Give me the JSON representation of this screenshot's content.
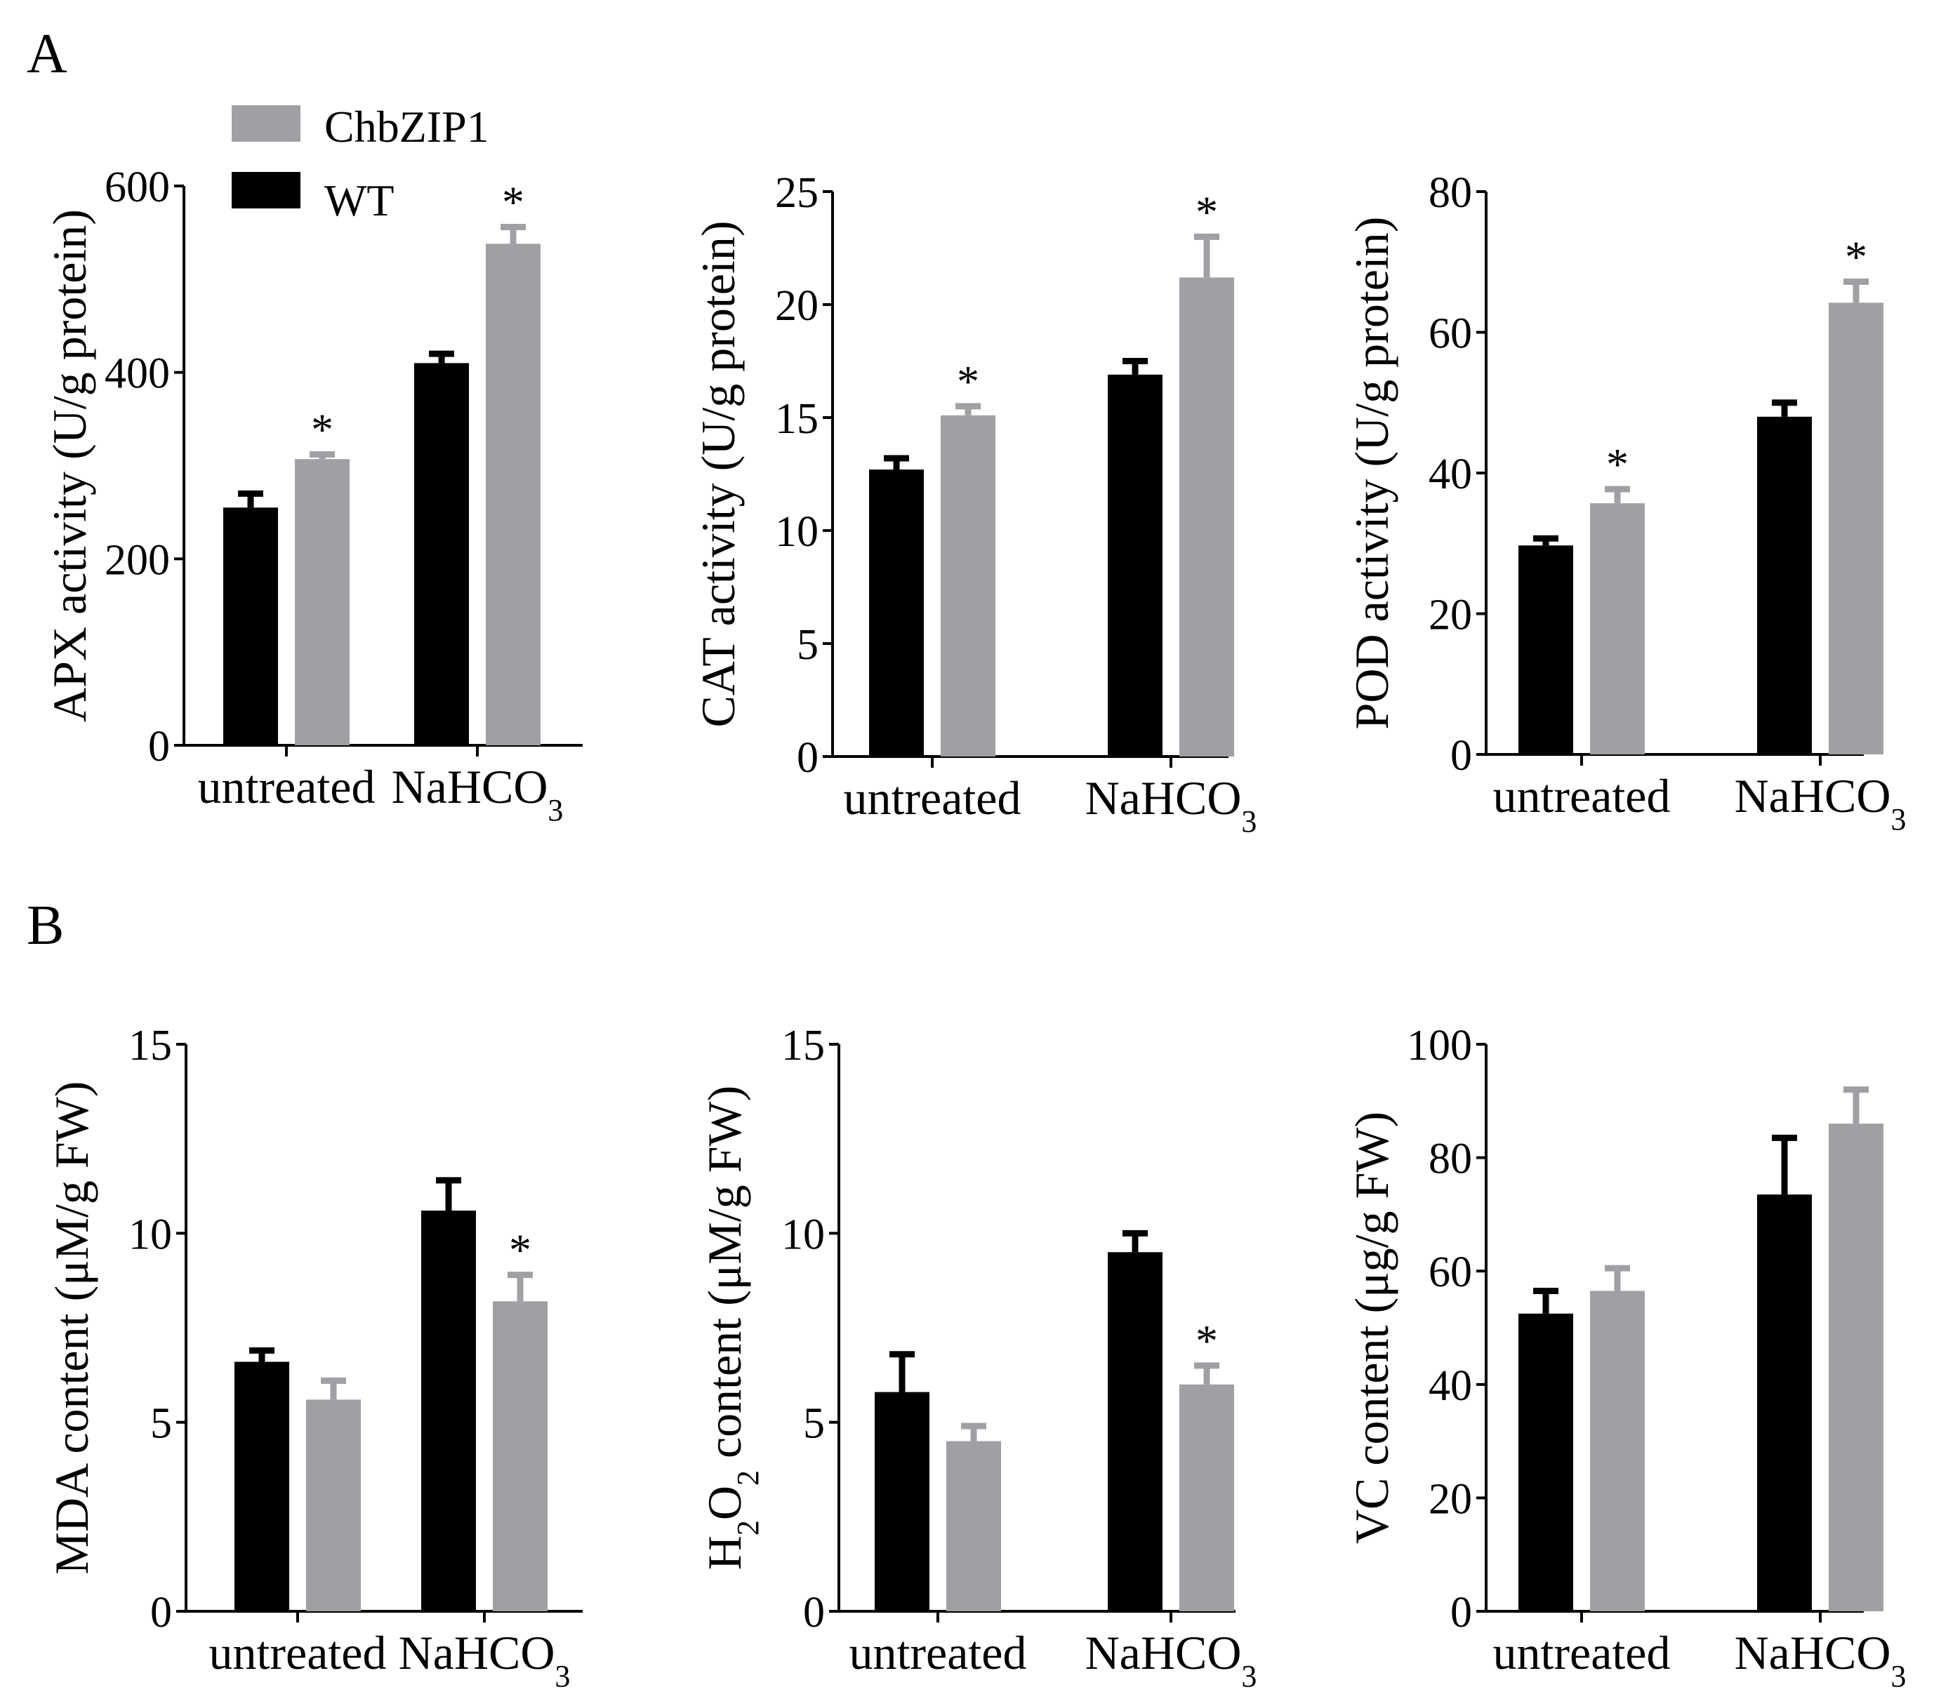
{
  "figure": {
    "panel_labels": [
      "A",
      "B"
    ],
    "legend": [
      {
        "name": "ChbZIP1",
        "color": "#a0a0a4"
      },
      {
        "name": "WT",
        "color": "#000000"
      }
    ],
    "colors": {
      "WT": "#000000",
      "ChbZIP1": "#a0a0a4",
      "axis": "#000000"
    },
    "sub_label": "3"
  },
  "chart_data": [
    {
      "type": "bar",
      "ylabel": "APX activity (U/g protein)",
      "categories": [
        "untreated",
        "NaHCO"
      ],
      "category_subscripts": [
        "",
        "3"
      ],
      "ylim": [
        0,
        600
      ],
      "yticks": [
        0,
        200,
        400,
        600
      ],
      "series": [
        {
          "name": "WT",
          "values": [
            255,
            410
          ],
          "errors": [
            15,
            10
          ],
          "significant": [
            false,
            false
          ]
        },
        {
          "name": "ChbZIP1",
          "values": [
            307,
            538
          ],
          "errors": [
            5,
            18
          ],
          "significant": [
            true,
            true
          ]
        }
      ],
      "significance_mark": "*"
    },
    {
      "type": "bar",
      "ylabel": "CAT activity (U/g protein)",
      "categories": [
        "untreated",
        "NaHCO"
      ],
      "category_subscripts": [
        "",
        "3"
      ],
      "ylim": [
        0,
        25
      ],
      "yticks": [
        0,
        5,
        10,
        15,
        20,
        25
      ],
      "series": [
        {
          "name": "WT",
          "values": [
            12.7,
            16.9
          ],
          "errors": [
            0.5,
            0.6
          ],
          "significant": [
            false,
            false
          ]
        },
        {
          "name": "ChbZIP1",
          "values": [
            15.1,
            21.2
          ],
          "errors": [
            0.4,
            1.8
          ],
          "significant": [
            true,
            true
          ]
        }
      ],
      "significance_mark": "*"
    },
    {
      "type": "bar",
      "ylabel": "POD activity (U/g protein)",
      "categories": [
        "untreated",
        "NaHCO"
      ],
      "category_subscripts": [
        "",
        "3"
      ],
      "ylim": [
        0,
        80
      ],
      "yticks": [
        0,
        20,
        40,
        60,
        80
      ],
      "series": [
        {
          "name": "WT",
          "values": [
            29.7,
            48.0
          ],
          "errors": [
            1.0,
            2.0
          ],
          "significant": [
            false,
            false
          ]
        },
        {
          "name": "ChbZIP1",
          "values": [
            35.7,
            64.2
          ],
          "errors": [
            2.0,
            3.0
          ],
          "significant": [
            true,
            true
          ]
        }
      ],
      "significance_mark": "*"
    },
    {
      "type": "bar",
      "ylabel": "MDA content (μM/g FW)",
      "categories": [
        "untreated",
        "NaHCO"
      ],
      "category_subscripts": [
        "",
        "3"
      ],
      "ylim": [
        0,
        15
      ],
      "yticks": [
        0,
        5,
        10,
        15
      ],
      "series": [
        {
          "name": "WT",
          "values": [
            6.6,
            10.6
          ],
          "errors": [
            0.3,
            0.8
          ],
          "significant": [
            false,
            false
          ]
        },
        {
          "name": "ChbZIP1",
          "values": [
            5.6,
            8.2
          ],
          "errors": [
            0.5,
            0.7
          ],
          "significant": [
            false,
            true
          ]
        }
      ],
      "significance_mark": "*"
    },
    {
      "type": "bar",
      "ylabel": "H2O2 content (μM/g FW)",
      "ylabel_parts": [
        "H",
        "2",
        "O",
        "2",
        " content (μM/g FW)"
      ],
      "categories": [
        "untreated",
        "NaHCO"
      ],
      "category_subscripts": [
        "",
        "3"
      ],
      "ylim": [
        0,
        15
      ],
      "yticks": [
        0,
        5,
        10,
        15
      ],
      "series": [
        {
          "name": "WT",
          "values": [
            5.8,
            9.5
          ],
          "errors": [
            1.0,
            0.5
          ],
          "significant": [
            false,
            false
          ]
        },
        {
          "name": "ChbZIP1",
          "values": [
            4.5,
            6.0
          ],
          "errors": [
            0.4,
            0.5
          ],
          "significant": [
            false,
            true
          ]
        }
      ],
      "significance_mark": "*"
    },
    {
      "type": "bar",
      "ylabel": "VC content (μg/g FW)",
      "categories": [
        "untreated",
        "NaHCO"
      ],
      "category_subscripts": [
        "",
        "3"
      ],
      "ylim": [
        0,
        100
      ],
      "yticks": [
        0,
        20,
        40,
        60,
        80,
        100
      ],
      "series": [
        {
          "name": "WT",
          "values": [
            52.5,
            73.5
          ],
          "errors": [
            4.0,
            10.0
          ],
          "significant": [
            false,
            false
          ]
        },
        {
          "name": "ChbZIP1",
          "values": [
            56.5,
            86.0
          ],
          "errors": [
            4.0,
            6.0
          ],
          "significant": [
            false,
            false
          ]
        }
      ],
      "significance_mark": "*"
    }
  ]
}
